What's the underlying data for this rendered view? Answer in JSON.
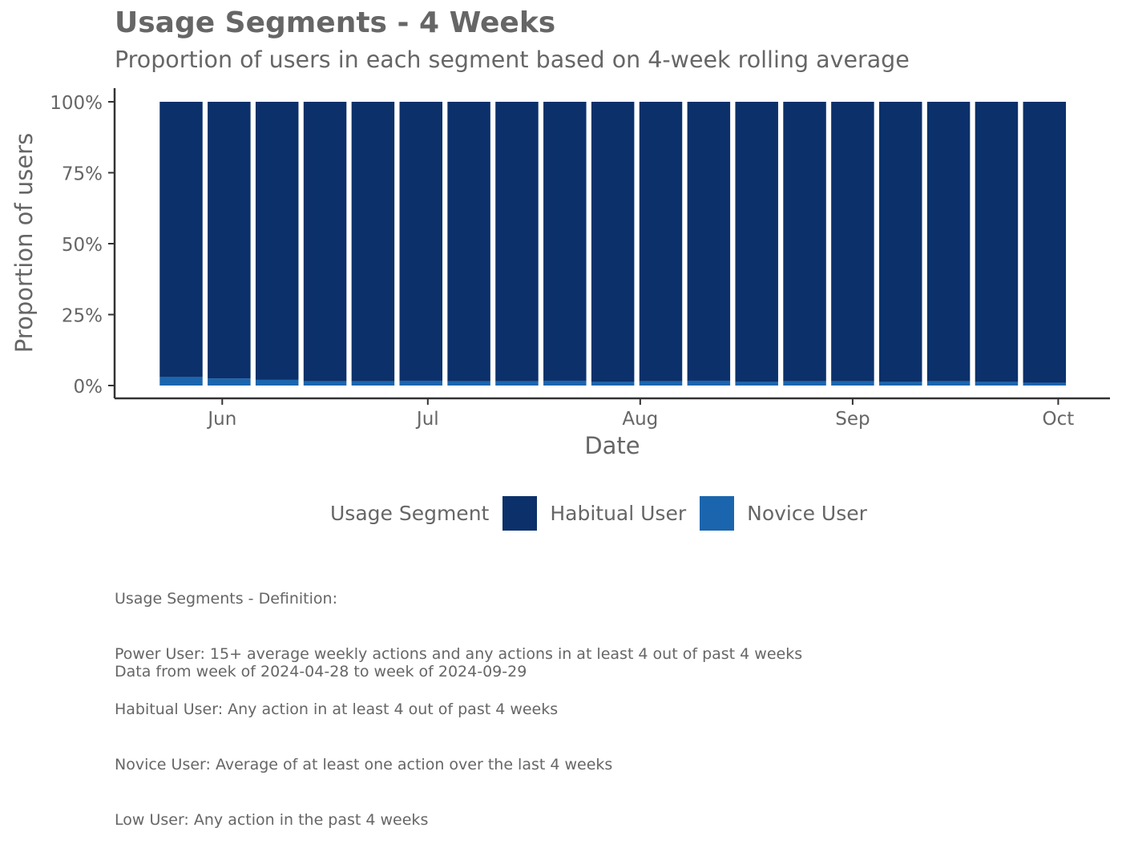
{
  "title": "Usage Segments - 4 Weeks",
  "subtitle": "Proportion of users in each segment based on 4-week rolling average",
  "legend": {
    "title": "Usage Segment",
    "items": [
      {
        "label": "Habitual User",
        "color": "#0c306a"
      },
      {
        "label": "Novice User",
        "color": "#1b65ae"
      }
    ]
  },
  "caption": {
    "lines": [
      "Usage Segments - Definition:",
      "Power User: 15+ average weekly actions and any actions in at least 4 out of past 4 weeks",
      "Habitual User: Any action in at least 4 out of past 4 weeks",
      "Novice User: Average of at least one action over the last 4 weeks",
      "Low User: Any action in the past 4 weeks"
    ]
  },
  "footer": "Data from week of 2024-04-28 to week of 2024-09-29",
  "chart_data": {
    "type": "bar",
    "stacked": true,
    "xlabel": "Date",
    "ylabel": "Proportion of users",
    "ylim": [
      0,
      1
    ],
    "y_ticks": [
      {
        "value": 0,
        "label": "0%"
      },
      {
        "value": 0.25,
        "label": "25%"
      },
      {
        "value": 0.5,
        "label": "50%"
      },
      {
        "value": 0.75,
        "label": "75%"
      },
      {
        "value": 1,
        "label": "100%"
      }
    ],
    "x_ticks": [
      {
        "date": "2024-06-01",
        "label": "Jun"
      },
      {
        "date": "2024-07-01",
        "label": "Jul"
      },
      {
        "date": "2024-08-01",
        "label": "Aug"
      },
      {
        "date": "2024-09-01",
        "label": "Sep"
      },
      {
        "date": "2024-10-01",
        "label": "Oct"
      }
    ],
    "x": [
      "2024-05-26",
      "2024-06-02",
      "2024-06-09",
      "2024-06-16",
      "2024-06-23",
      "2024-06-30",
      "2024-07-07",
      "2024-07-14",
      "2024-07-21",
      "2024-07-28",
      "2024-08-04",
      "2024-08-11",
      "2024-08-18",
      "2024-08-25",
      "2024-09-01",
      "2024-09-08",
      "2024-09-15",
      "2024-09-22",
      "2024-09-29"
    ],
    "series": [
      {
        "name": "Novice User",
        "color": "#1b65ae",
        "values": [
          0.03,
          0.025,
          0.02,
          0.015,
          0.015,
          0.017,
          0.015,
          0.015,
          0.017,
          0.013,
          0.015,
          0.017,
          0.013,
          0.015,
          0.015,
          0.013,
          0.015,
          0.013,
          0.01
        ]
      },
      {
        "name": "Habitual User",
        "color": "#0c306a",
        "values": [
          0.97,
          0.975,
          0.98,
          0.985,
          0.985,
          0.983,
          0.985,
          0.985,
          0.983,
          0.987,
          0.985,
          0.983,
          0.987,
          0.985,
          0.985,
          0.987,
          0.985,
          0.987,
          0.99
        ]
      }
    ],
    "legend_position": "bottom",
    "grid": false
  }
}
